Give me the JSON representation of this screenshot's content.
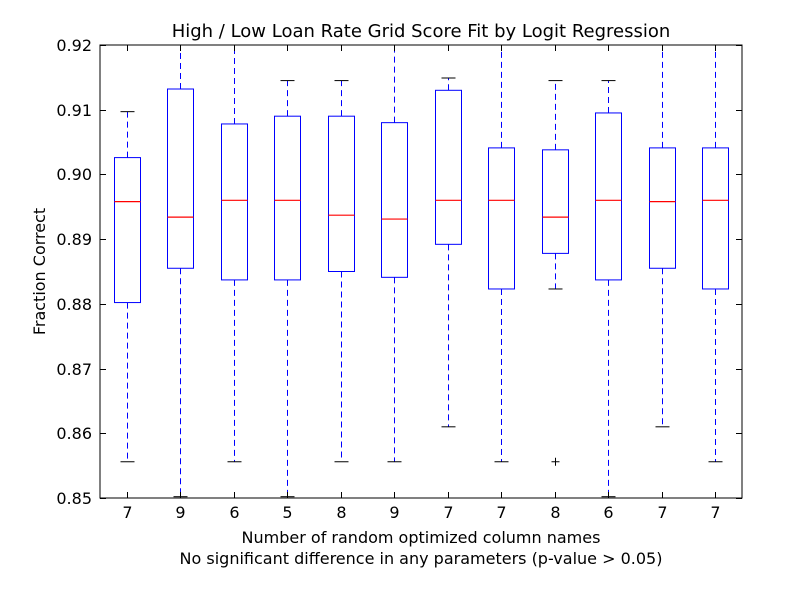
{
  "chart_data": {
    "type": "box",
    "title": "High / Low Loan Rate Grid Score Fit by Logit Regression",
    "xlabel": "Number of random optimized column names",
    "xlabel_note": "No significant difference in any parameters (p-value > 0.05)",
    "ylabel": "Fraction Correct",
    "ylim": [
      0.85,
      0.92
    ],
    "yticks": [
      "0.85",
      "0.86",
      "0.87",
      "0.88",
      "0.89",
      "0.90",
      "0.91",
      "0.92"
    ],
    "categories": [
      "7",
      "9",
      "6",
      "5",
      "8",
      "9",
      "7",
      "7",
      "8",
      "6",
      "7",
      "7"
    ],
    "boxes": [
      {
        "whisker_low": 0.8556,
        "q1": 0.8802,
        "median": 0.8958,
        "q3": 0.9026,
        "whisker_high": 0.9097,
        "outliers": []
      },
      {
        "whisker_low": 0.8502,
        "q1": 0.8855,
        "median": 0.8934,
        "q3": 0.9132,
        "whisker_high": 0.92,
        "outliers": []
      },
      {
        "whisker_low": 0.8556,
        "q1": 0.8837,
        "median": 0.896,
        "q3": 0.9078,
        "whisker_high": 0.92,
        "outliers": []
      },
      {
        "whisker_low": 0.8502,
        "q1": 0.8837,
        "median": 0.896,
        "q3": 0.909,
        "whisker_high": 0.9145,
        "outliers": []
      },
      {
        "whisker_low": 0.8556,
        "q1": 0.885,
        "median": 0.8937,
        "q3": 0.909,
        "whisker_high": 0.9145,
        "outliers": []
      },
      {
        "whisker_low": 0.8556,
        "q1": 0.8841,
        "median": 0.8931,
        "q3": 0.908,
        "whisker_high": 0.92,
        "outliers": []
      },
      {
        "whisker_low": 0.861,
        "q1": 0.8892,
        "median": 0.896,
        "q3": 0.913,
        "whisker_high": 0.9149,
        "outliers": []
      },
      {
        "whisker_low": 0.8556,
        "q1": 0.8823,
        "median": 0.896,
        "q3": 0.9041,
        "whisker_high": 0.92,
        "outliers": []
      },
      {
        "whisker_low": 0.8823,
        "q1": 0.8878,
        "median": 0.8934,
        "q3": 0.9038,
        "whisker_high": 0.9145,
        "outliers": [
          0.8556
        ]
      },
      {
        "whisker_low": 0.8502,
        "q1": 0.8837,
        "median": 0.896,
        "q3": 0.9095,
        "whisker_high": 0.9145,
        "outliers": []
      },
      {
        "whisker_low": 0.861,
        "q1": 0.8855,
        "median": 0.8958,
        "q3": 0.9041,
        "whisker_high": 0.92,
        "outliers": []
      },
      {
        "whisker_low": 0.8556,
        "q1": 0.8823,
        "median": 0.896,
        "q3": 0.9041,
        "whisker_high": 0.92,
        "outliers": []
      }
    ],
    "grid": false,
    "legend": "none",
    "colors": {
      "box": "#0000ff",
      "median": "#ff0000",
      "whisker": "#0000ff",
      "cap": "#000000",
      "flier": "#000000",
      "frame": "#000000"
    }
  }
}
